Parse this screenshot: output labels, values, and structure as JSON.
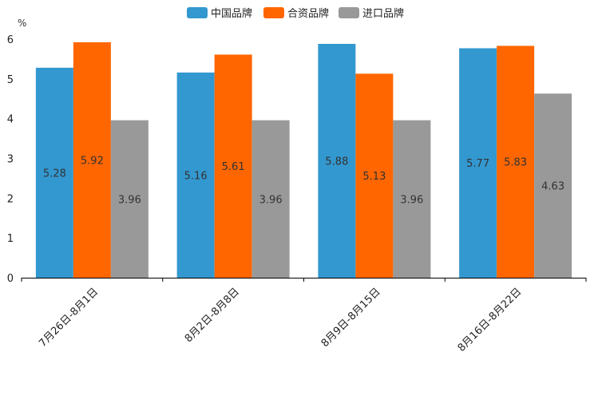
{
  "chart_data": {
    "type": "bar",
    "title": "",
    "xlabel": "",
    "ylabel": "%",
    "ylim": [
      0,
      6
    ],
    "yticks": [
      0,
      1,
      2,
      3,
      4,
      5,
      6
    ],
    "grid": false,
    "legend_position": "top-center",
    "categories": [
      "7月26日-8月1日",
      "8月2日-8月8日",
      "8月9日-8月15日",
      "8月16日-8月22日"
    ],
    "series": [
      {
        "name": "中国品牌",
        "color": "#3398D0",
        "values": [
          5.28,
          5.16,
          5.88,
          5.77
        ]
      },
      {
        "name": "合资品牌",
        "color": "#FF6600",
        "values": [
          5.92,
          5.61,
          5.13,
          5.83
        ]
      },
      {
        "name": "进口品牌",
        "color": "#999999",
        "values": [
          3.96,
          3.96,
          3.96,
          4.63
        ]
      }
    ]
  }
}
